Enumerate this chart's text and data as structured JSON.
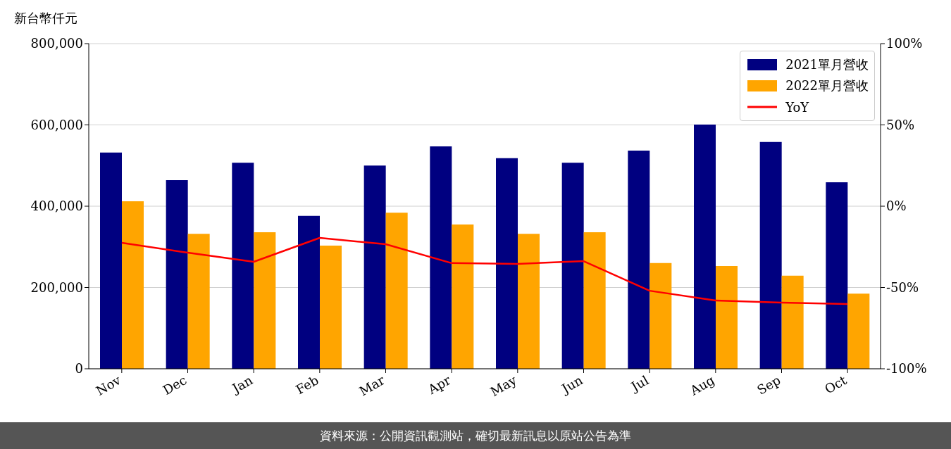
{
  "chart_data": {
    "type": "bar",
    "ylabel": "新台幣仟元",
    "categories": [
      "Nov",
      "Dec",
      "Jan",
      "Feb",
      "Mar",
      "Apr",
      "May",
      "Jun",
      "Jul",
      "Aug",
      "Sep",
      "Oct"
    ],
    "series": [
      {
        "name": "2021單月營收",
        "color": "#000080",
        "values": [
          532000,
          464000,
          507000,
          376000,
          500000,
          547000,
          518000,
          507000,
          537000,
          601000,
          558000,
          459000
        ]
      },
      {
        "name": "2022單月營收",
        "color": "#ffa500",
        "values": [
          412000,
          332000,
          336000,
          303000,
          384000,
          355000,
          332000,
          336000,
          260000,
          253000,
          229000,
          185000
        ]
      },
      {
        "name": "YoY",
        "type": "line",
        "axis": "y2",
        "color": "#ff0000",
        "marker": "none",
        "line_style": "solid",
        "values": [
          -22.5,
          -28.6,
          -34.2,
          -19.5,
          -23.4,
          -35,
          -35.5,
          -33.8,
          -52,
          -58,
          -59.3,
          -60.2
        ]
      }
    ],
    "ylim": [
      0,
      800000
    ],
    "yticks": [
      {
        "value": 0,
        "label": "0"
      },
      {
        "value": 200000,
        "label": "200,000"
      },
      {
        "value": 400000,
        "label": "400,000"
      },
      {
        "value": 600000,
        "label": "600,000"
      },
      {
        "value": 800000,
        "label": "800,000"
      }
    ],
    "y2lim": [
      -100,
      100
    ],
    "y2ticks": [
      {
        "value": -100,
        "label": "-100%"
      },
      {
        "value": -50,
        "label": "-50%"
      },
      {
        "value": 0,
        "label": "0%"
      },
      {
        "value": 50,
        "label": "50%"
      },
      {
        "value": 100,
        "label": "100%"
      }
    ],
    "grid": "y",
    "legend": "top right",
    "annotations": [
      "資料來源：公開資訊觀測站，確切最新訊息以原站公告為準"
    ]
  }
}
